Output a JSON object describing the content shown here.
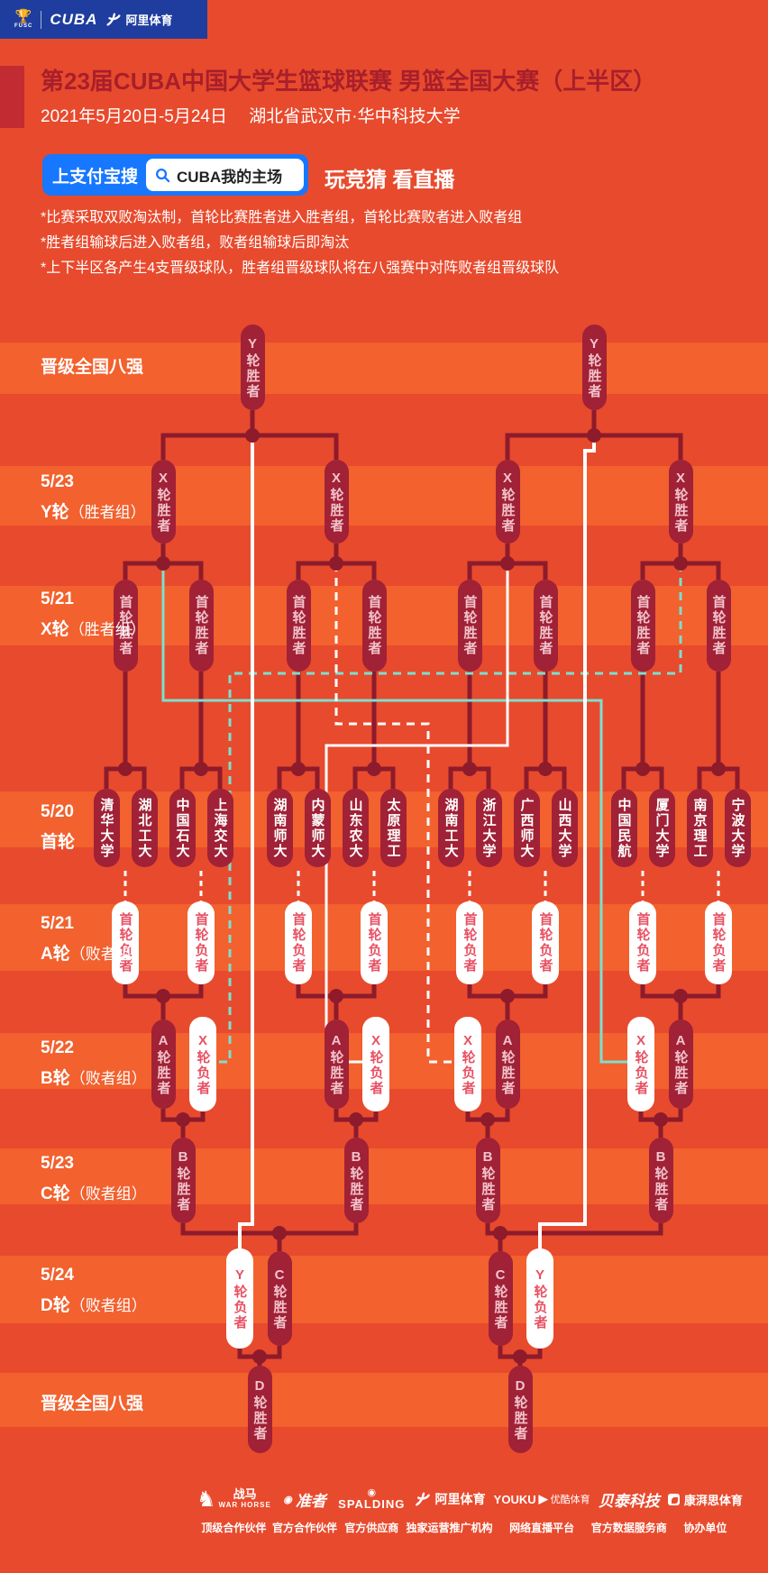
{
  "header": {
    "fusc": "FUSC",
    "cuba": "CUBA",
    "ali": "阿里体育"
  },
  "title": "第23届CUBA中国大学生篮球联赛 男篮全国大赛（上半区）",
  "subtitle": "2021年5月20日-5月24日　 湖北省武汉市·华中科技大学",
  "alipay": {
    "button": "上支付宝搜",
    "search_value": "CUBA我的主场",
    "promo": "玩竞猜 看直播"
  },
  "rules": [
    "*比赛采取双败淘汰制，首轮比赛胜者进入胜者组，首轮比赛败者进入败者组",
    "*胜者组输球后进入败者组，败者组输球后即淘汰",
    "*上下半区各产生4支晋级球队，胜者组晋级球队将在八强赛中对阵败者组晋级球队"
  ],
  "row_labels": [
    {
      "date": "",
      "round": "晋级全国八强",
      "suffix": ""
    },
    {
      "date": "5/23",
      "round": "Y轮",
      "suffix": "（胜者组）"
    },
    {
      "date": "5/21",
      "round": "X轮",
      "suffix": "（胜者组）"
    },
    {
      "date": "5/20",
      "round": "首轮",
      "suffix": ""
    },
    {
      "date": "5/21",
      "round": "A轮",
      "suffix": "（败者组）"
    },
    {
      "date": "5/22",
      "round": "B轮",
      "suffix": "（败者组）"
    },
    {
      "date": "5/23",
      "round": "C轮",
      "suffix": "（败者组）"
    },
    {
      "date": "5/24",
      "round": "D轮",
      "suffix": "（败者组）"
    },
    {
      "date": "",
      "round": "晋级全国八强",
      "suffix": ""
    }
  ],
  "bracket": {
    "teams": [
      "清华大学",
      "湖北工大",
      "中国石大",
      "上海交大",
      "湖南师大",
      "内蒙师大",
      "山东农大",
      "太原理工",
      "湖南工大",
      "浙江大学",
      "广西师大",
      "山西大学",
      "中国民航",
      "厦门大学",
      "南京理工",
      "宁波大学"
    ],
    "labels": {
      "r1_winner": "首轮胜者",
      "x_winner": "X轮胜者",
      "y_winner": "Y轮胜者",
      "r1_loser": "首轮负者",
      "a_winner": "A轮胜者",
      "x_loser": "X轮负者",
      "b_winner": "B轮胜者",
      "c_winner": "C轮胜者",
      "y_loser": "Y轮负者",
      "d_winner": "D轮胜者"
    }
  },
  "footer": [
    {
      "logo": "WAR HORSE",
      "logo_cn": "战马",
      "label": "顶级合作伙伴"
    },
    {
      "logo": "准者",
      "logo_cn": "",
      "label": "官方合作伙伴"
    },
    {
      "logo": "SPALDING",
      "logo_cn": "",
      "label": "官方供应商"
    },
    {
      "logo": "阿里体育",
      "logo_cn": "",
      "label": "独家运营推广机构"
    },
    {
      "logo": "YOUKU",
      "logo_cn": "优酷体育",
      "label": "网络直播平台"
    },
    {
      "logo": "贝泰科技",
      "logo_cn": "",
      "label": "官方数据服务商"
    },
    {
      "logo": "康湃思体育",
      "logo_cn": "",
      "label": "协办单位"
    }
  ],
  "colors": {
    "bg": "#e84a2d",
    "stripe": "#f2612e",
    "navy": "#1e3d9e",
    "title": "#a81f2b",
    "accent": "#c22b31",
    "pill_dark": "#a12136",
    "wire_dark": "#8d1b2c",
    "white_pill_text": "#e85163",
    "teal": "#7be0cf",
    "alipay_blue": "#1777ff"
  }
}
